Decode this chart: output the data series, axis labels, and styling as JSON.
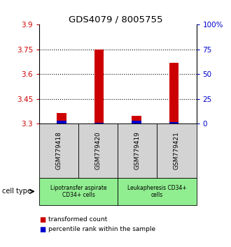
{
  "title": "GDS4079 / 8005755",
  "samples": [
    "GSM779418",
    "GSM779420",
    "GSM779419",
    "GSM779421"
  ],
  "red_values": [
    3.365,
    3.748,
    3.345,
    3.67
  ],
  "blue_values": [
    3.315,
    3.305,
    3.315,
    3.31
  ],
  "red_base": 3.3,
  "ylim": [
    3.3,
    3.9
  ],
  "yticks_left": [
    3.3,
    3.45,
    3.6,
    3.75,
    3.9
  ],
  "yticks_right": [
    0,
    25,
    50,
    75,
    100
  ],
  "ytick_labels_left": [
    "3.3",
    "3.45",
    "3.6",
    "3.75",
    "3.9"
  ],
  "ytick_labels_right": [
    "0",
    "25",
    "50",
    "75",
    "100%"
  ],
  "grid_yticks": [
    3.45,
    3.6,
    3.75
  ],
  "left_color": "#cc0000",
  "right_color": "#0000cc",
  "bar_red_color": "#cc0000",
  "bar_blue_color": "#0000cc",
  "cell_type_label": "cell type",
  "groups": [
    {
      "label": "Lipotransfer aspirate\nCD34+ cells",
      "color": "#90ee90",
      "samples": [
        0,
        1
      ]
    },
    {
      "label": "Leukapheresis CD34+\ncells",
      "color": "#90ee90",
      "samples": [
        2,
        3
      ]
    }
  ],
  "legend_red": "transformed count",
  "legend_blue": "percentile rank within the sample",
  "sample_box_color": "#d3d3d3",
  "bar_width": 0.25,
  "fig_width": 3.3,
  "fig_height": 3.54,
  "dpi": 100
}
